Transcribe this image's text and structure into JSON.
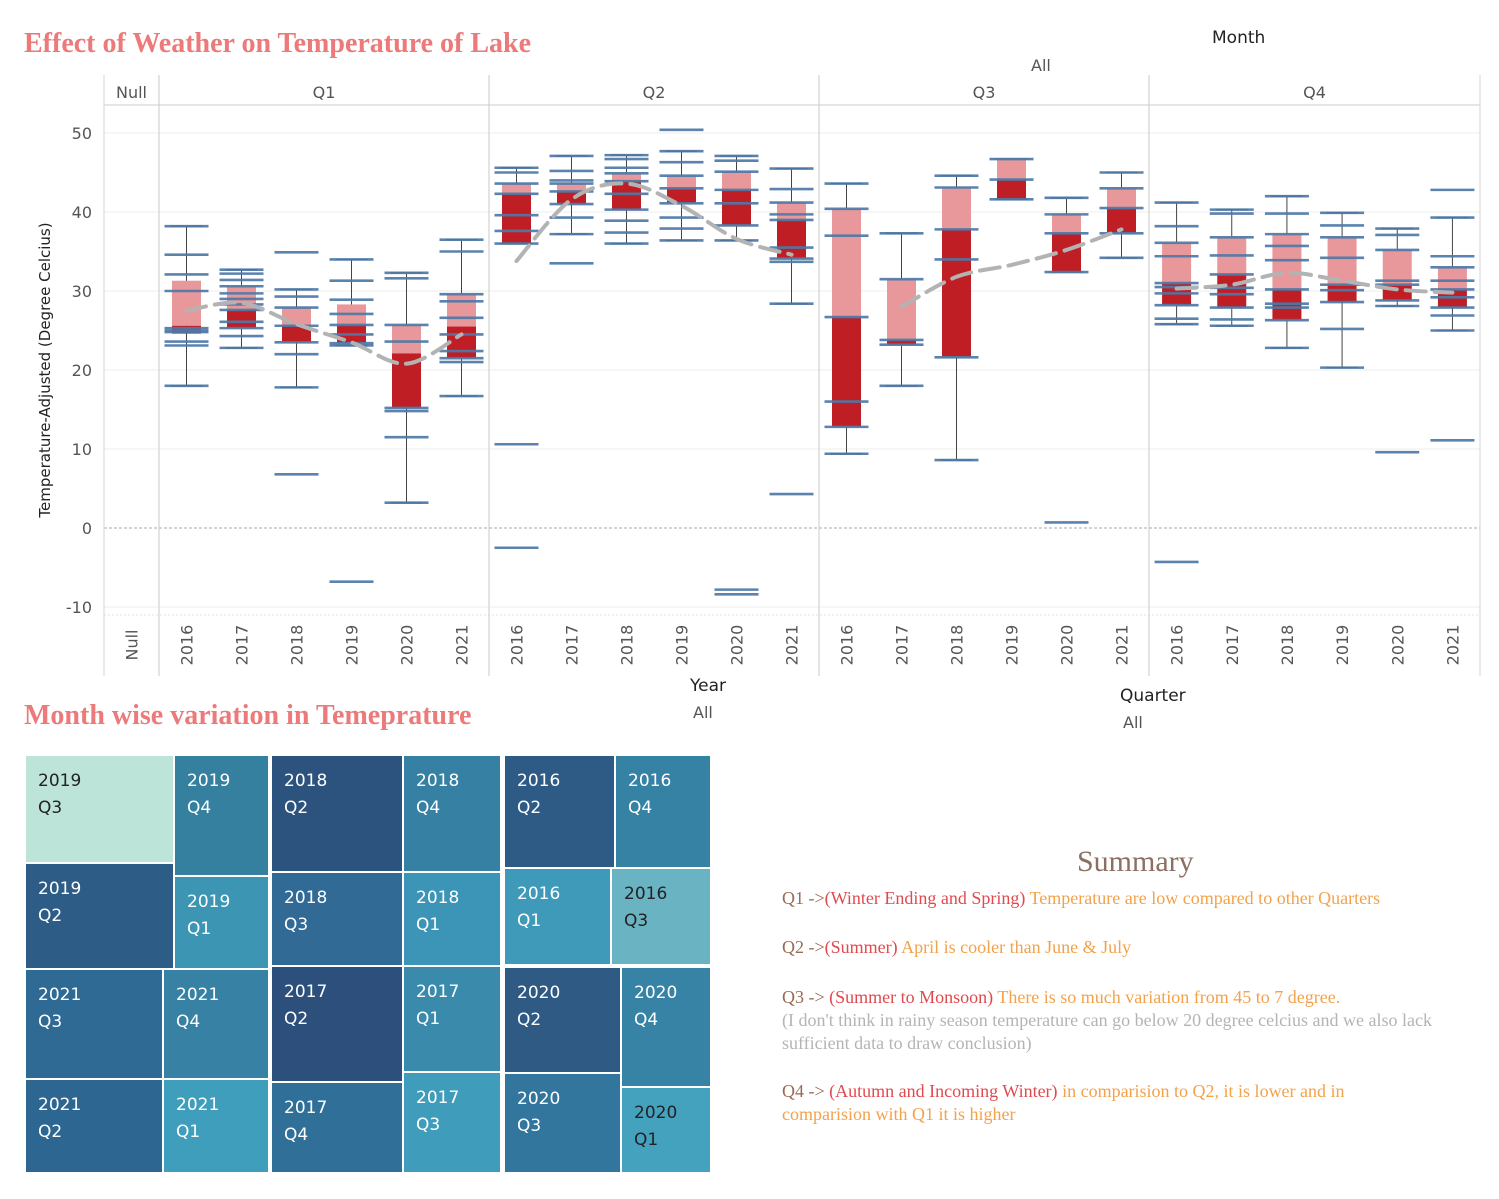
{
  "titles": {
    "main": "Effect of Weather on Temperature of Lake",
    "treemap": "Month wise variation in Temeprature"
  },
  "filters": {
    "month": {
      "label": "Month",
      "value": "All"
    },
    "year": {
      "label": "Year",
      "value": "All"
    },
    "quarter": {
      "label": "Quarter",
      "value": "All"
    }
  },
  "colors": {
    "box_upper": "#e8989a",
    "box_lower": "#bf1e25",
    "points": "#4e79a7",
    "trend": "#b3b3b3",
    "title": "#ec7a7a"
  },
  "chart_data": {
    "type": "box",
    "ylabel": "Temperature-Adjusted (Degree Celcius)",
    "ylim": [
      -11,
      53
    ],
    "yticks": [
      50,
      40,
      30,
      20,
      10,
      0,
      -10
    ],
    "grid": true,
    "panels": [
      {
        "label": "Null",
        "years": [
          {
            "year": "Null"
          }
        ]
      },
      {
        "label": "Q1",
        "years": [
          {
            "year": "2016",
            "wl": 18,
            "q1": 24.6,
            "med": 25.6,
            "q3": 31.3,
            "wh": 38.2,
            "points": [
              38.2,
              34.6,
              32.1,
              30,
              25.3,
              25,
              24.8,
              23.6,
              23.1,
              18
            ]
          },
          {
            "year": "2017",
            "wl": 22.8,
            "q1": 25.3,
            "med": 27.6,
            "q3": 30.6,
            "wh": 32.7,
            "points": [
              32.7,
              32.2,
              31.4,
              30.6,
              29.7,
              29,
              28.3,
              27.6,
              26.1,
              25.3,
              24.3,
              22.8
            ]
          },
          {
            "year": "2018",
            "wl": 17.8,
            "q1": 23.5,
            "med": 25.6,
            "q3": 27.9,
            "wh": 30.2,
            "points": [
              34.9,
              30.2,
              29.3,
              27.9,
              25.6,
              23.5,
              22,
              17.8,
              6.8
            ]
          },
          {
            "year": "2019",
            "wl": 23.1,
            "q1": 23.4,
            "med": 25.7,
            "q3": 28.3,
            "wh": 34,
            "points": [
              34,
              31.3,
              28.9,
              27.1,
              25.7,
              24.5,
              23.4,
              23.1,
              -6.8
            ]
          },
          {
            "year": "2020",
            "wl": 3.2,
            "q1": 15.2,
            "med": 22.1,
            "q3": 25.7,
            "wh": 32.3,
            "points": [
              32.3,
              31.6,
              25.7,
              23.6,
              15.2,
              14.8,
              11.5,
              3.2
            ]
          },
          {
            "year": "2021",
            "wl": 16.7,
            "q1": 21.5,
            "med": 25.5,
            "q3": 29.6,
            "wh": 36.5,
            "points": [
              36.5,
              35,
              29.6,
              28.7,
              26.6,
              24.5,
              22.4,
              21.5,
              21,
              16.7
            ]
          }
        ]
      },
      {
        "label": "Q2",
        "years": [
          {
            "year": "2016",
            "wl": 36,
            "q1": 36,
            "med": 42.3,
            "q3": 43.6,
            "wh": 45.6,
            "points": [
              45.6,
              45,
              43.6,
              42.3,
              39.6,
              37.6,
              36,
              10.6,
              -2.5
            ]
          },
          {
            "year": "2017",
            "wl": 37.2,
            "q1": 41,
            "med": 42.6,
            "q3": 43.6,
            "wh": 47.1,
            "points": [
              47.1,
              45.2,
              44,
              43.6,
              42.6,
              41,
              39.3,
              37.2,
              33.5
            ]
          },
          {
            "year": "2018",
            "wl": 36,
            "q1": 40.3,
            "med": 43.9,
            "q3": 44.9,
            "wh": 47.2,
            "points": [
              47.2,
              46.7,
              45.6,
              44.9,
              43.9,
              42.3,
              40.3,
              38.9,
              37.4,
              36
            ]
          },
          {
            "year": "2019",
            "wl": 36.4,
            "q1": 41.1,
            "med": 43,
            "q3": 44.6,
            "wh": 47.7,
            "points": [
              50.4,
              47.7,
              46.3,
              44.6,
              43,
              41.1,
              39.3,
              37.9,
              36.4
            ]
          },
          {
            "year": "2020",
            "wl": 36.4,
            "q1": 38.3,
            "med": 42.8,
            "q3": 45.1,
            "wh": 47.1,
            "points": [
              47.1,
              46.5,
              45.1,
              42.8,
              41.1,
              38.3,
              36.4,
              -7.8,
              -8.4
            ]
          },
          {
            "year": "2021",
            "wl": 28.4,
            "q1": 34.1,
            "med": 39,
            "q3": 41.2,
            "wh": 45.5,
            "points": [
              45.5,
              42.9,
              41.2,
              39.7,
              39,
              35.5,
              34.1,
              33.7,
              28.4,
              4.3
            ]
          }
        ]
      },
      {
        "label": "Q3",
        "years": [
          {
            "year": "2016",
            "wl": 9.4,
            "q1": 12.8,
            "med": 26.7,
            "q3": 40.4,
            "wh": 43.6,
            "points": [
              43.6,
              40.4,
              37,
              26.7,
              16,
              12.8,
              9.4
            ]
          },
          {
            "year": "2017",
            "wl": 18,
            "q1": 23.2,
            "med": 23.8,
            "q3": 31.5,
            "wh": 37.3,
            "points": [
              37.3,
              31.5,
              23.8,
              23.2,
              18
            ]
          },
          {
            "year": "2018",
            "wl": 8.6,
            "q1": 21.6,
            "med": 37.8,
            "q3": 43.1,
            "wh": 44.6,
            "points": [
              44.6,
              43.1,
              37.8,
              34,
              21.6,
              8.6
            ]
          },
          {
            "year": "2019",
            "wl": 41.6,
            "q1": 41.6,
            "med": 44.1,
            "q3": 46.7,
            "wh": 46.7,
            "points": [
              46.7,
              44.1,
              41.6
            ]
          },
          {
            "year": "2020",
            "wl": 32.4,
            "q1": 32.4,
            "med": 37.3,
            "q3": 39.7,
            "wh": 41.8,
            "points": [
              41.8,
              39.7,
              37.3,
              32.4,
              0.7
            ]
          },
          {
            "year": "2021",
            "wl": 34.2,
            "q1": 37.3,
            "med": 40.5,
            "q3": 43,
            "wh": 45,
            "points": [
              45,
              43,
              40.5,
              37.3,
              34.2
            ]
          }
        ]
      },
      {
        "label": "Q4",
        "years": [
          {
            "year": "2016",
            "wl": 25.8,
            "q1": 28.2,
            "med": 31,
            "q3": 36.1,
            "wh": 41.2,
            "points": [
              41.2,
              38.2,
              36.1,
              34.4,
              31,
              30.5,
              29.7,
              28.2,
              26.5,
              25.8,
              -4.3
            ]
          },
          {
            "year": "2017",
            "wl": 25.6,
            "q1": 27.9,
            "med": 32.1,
            "q3": 36.8,
            "wh": 40.3,
            "points": [
              40.3,
              39.8,
              36.8,
              34.5,
              32.1,
              30.4,
              29.6,
              27.9,
              26.4,
              25.6
            ]
          },
          {
            "year": "2018",
            "wl": 22.8,
            "q1": 26.3,
            "med": 30.2,
            "q3": 37.2,
            "wh": 42,
            "points": [
              42,
              39.8,
              37.2,
              35.7,
              33.9,
              30.2,
              28.4,
              27.9,
              26.3,
              22.8
            ]
          },
          {
            "year": "2019",
            "wl": 20.3,
            "q1": 28.6,
            "med": 30.8,
            "q3": 36.8,
            "wh": 39.9,
            "points": [
              39.9,
              38.3,
              36.8,
              34.2,
              30.8,
              30.1,
              28.6,
              25.2,
              20.3
            ]
          },
          {
            "year": "2020",
            "wl": 28.1,
            "q1": 28.8,
            "med": 30.8,
            "q3": 35.2,
            "wh": 37.9,
            "points": [
              37.9,
              37.1,
              35.2,
              31.3,
              30.8,
              28.8,
              28.1,
              9.6
            ]
          },
          {
            "year": "2021",
            "wl": 25,
            "q1": 27.9,
            "med": 30.2,
            "q3": 33,
            "wh": 39.3,
            "points": [
              42.8,
              39.3,
              34.4,
              33,
              31.3,
              30.2,
              29.2,
              27.9,
              26.9,
              25,
              11.1
            ]
          }
        ]
      }
    ],
    "trend_line": {
      "style": "dashed",
      "points": [
        {
          "x": "Q1 2016",
          "y": 27.5
        },
        {
          "x": "Q1 2017",
          "y": 28.5
        },
        {
          "x": "Q1 2018",
          "y": 25.8
        },
        {
          "x": "Q1 2019",
          "y": 23.5
        },
        {
          "x": "Q1 2020",
          "y": 20.8
        },
        {
          "x": "Q1 2021",
          "y": 24.5
        },
        {
          "x": "Q2 2016",
          "y": 33.8
        },
        {
          "x": "Q2 2017",
          "y": 41.6
        },
        {
          "x": "Q2 2018",
          "y": 43.6
        },
        {
          "x": "Q2 2019",
          "y": 40.8
        },
        {
          "x": "Q2 2020",
          "y": 36.6
        },
        {
          "x": "Q2 2021",
          "y": 34.6
        },
        {
          "x": "Q3 2017",
          "y": 28
        },
        {
          "x": "Q3 2018",
          "y": 31.8
        },
        {
          "x": "Q3 2019",
          "y": 33.3
        },
        {
          "x": "Q3 2020",
          "y": 35.2
        },
        {
          "x": "Q3 2021",
          "y": 37.8
        },
        {
          "x": "Q4 2016",
          "y": 30.3
        },
        {
          "x": "Q4 2017",
          "y": 30.8
        },
        {
          "x": "Q4 2018",
          "y": 32.3
        },
        {
          "x": "Q4 2019",
          "y": 31.3
        },
        {
          "x": "Q4 2020",
          "y": 30.2
        },
        {
          "x": "Q4 2021",
          "y": 29.8
        }
      ]
    }
  },
  "treemap": {
    "tiles": [
      {
        "year": "2019",
        "quarter": "Q3",
        "color": "#bde4d9",
        "text_color": "#222222"
      },
      {
        "year": "2019",
        "quarter": "Q4",
        "color": "#35809f",
        "text_color": "#ffffff"
      },
      {
        "year": "2019",
        "quarter": "Q2",
        "color": "#2d5d86",
        "text_color": "#ffffff"
      },
      {
        "year": "2019",
        "quarter": "Q1",
        "color": "#3d95b4",
        "text_color": "#ffffff"
      },
      {
        "year": "2021",
        "quarter": "Q3",
        "color": "#2f6a94",
        "text_color": "#ffffff"
      },
      {
        "year": "2021",
        "quarter": "Q4",
        "color": "#3782a4",
        "text_color": "#ffffff"
      },
      {
        "year": "2021",
        "quarter": "Q2",
        "color": "#2d6690",
        "text_color": "#ffffff"
      },
      {
        "year": "2021",
        "quarter": "Q1",
        "color": "#409ebd",
        "text_color": "#ffffff"
      },
      {
        "year": "2018",
        "quarter": "Q2",
        "color": "#2c527e",
        "text_color": "#ffffff"
      },
      {
        "year": "2018",
        "quarter": "Q4",
        "color": "#3681a3",
        "text_color": "#ffffff"
      },
      {
        "year": "2018",
        "quarter": "Q3",
        "color": "#306a95",
        "text_color": "#ffffff"
      },
      {
        "year": "2018",
        "quarter": "Q1",
        "color": "#3c95b6",
        "text_color": "#ffffff"
      },
      {
        "year": "2017",
        "quarter": "Q2",
        "color": "#2c507b",
        "text_color": "#ffffff"
      },
      {
        "year": "2017",
        "quarter": "Q1",
        "color": "#398aab",
        "text_color": "#ffffff"
      },
      {
        "year": "2017",
        "quarter": "Q4",
        "color": "#306f98",
        "text_color": "#ffffff"
      },
      {
        "year": "2017",
        "quarter": "Q3",
        "color": "#3f9cbb",
        "text_color": "#ffffff"
      },
      {
        "year": "2016",
        "quarter": "Q2",
        "color": "#2e5b86",
        "text_color": "#ffffff"
      },
      {
        "year": "2016",
        "quarter": "Q4",
        "color": "#3682a4",
        "text_color": "#ffffff"
      },
      {
        "year": "2016",
        "quarter": "Q1",
        "color": "#3f99b8",
        "text_color": "#ffffff"
      },
      {
        "year": "2016",
        "quarter": "Q3",
        "color": "#6ab3c2",
        "text_color": "#222222"
      },
      {
        "year": "2020",
        "quarter": "Q2",
        "color": "#2e5a84",
        "text_color": "#ffffff"
      },
      {
        "year": "2020",
        "quarter": "Q4",
        "color": "#3683a5",
        "text_color": "#ffffff"
      },
      {
        "year": "2020",
        "quarter": "Q3",
        "color": "#32769d",
        "text_color": "#ffffff"
      },
      {
        "year": "2020",
        "quarter": "Q1",
        "color": "#45a2bf",
        "text_color": "#222222"
      }
    ]
  },
  "summary": {
    "heading": "Summary",
    "q1": {
      "lead": "Q1 ->",
      "paren": "(Winter Ending and Spring)",
      "text": " Temperature are low compared to other Quarters"
    },
    "q2": {
      "lead": "Q2 ->",
      "paren": "(Summer)",
      "text": " April is cooler than June & July"
    },
    "q3": {
      "lead": "Q3  -> ",
      "paren": "(Summer to Monsoon)",
      "text": " There is so much variation from 45 to 7 degree.",
      "note": "(I don't think in rainy season temperature can go below 20 degree celcius and we also lack sufficient data to draw conclusion)"
    },
    "q4": {
      "lead": "Q4 -> ",
      "paren": "(Autumn and Incoming Winter)",
      "mid": " in c",
      "text": "omparision to Q2, it is lower and in comparision with Q1 it is higher"
    }
  }
}
